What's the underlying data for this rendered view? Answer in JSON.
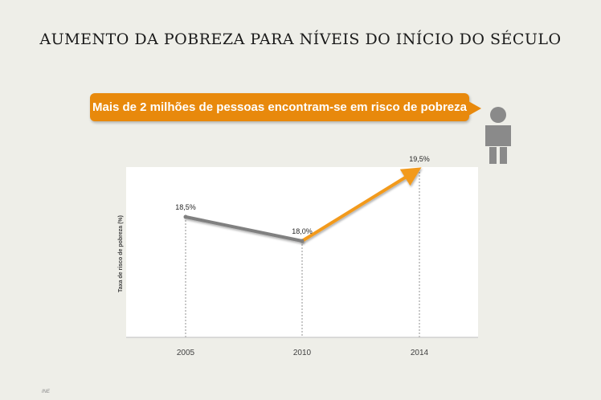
{
  "title": "AUMENTO DA POBREZA PARA NÍVEIS DO INÍCIO DO SÉCULO",
  "callout": "Mais de 2 milhões de pessoas encontram-se em risco de pobreza",
  "icon": "person-icon",
  "source": "INE",
  "colors": {
    "grey_line": "#808080",
    "orange_line": "#f29a1e",
    "callout": "#e8890c",
    "icon": "#8a8a8a"
  },
  "chart_data": {
    "type": "line",
    "categories": [
      "2005",
      "2010",
      "2014"
    ],
    "values": [
      18.5,
      18.0,
      19.5
    ],
    "data_labels": [
      "18,5%",
      "18,0%",
      "19,5%"
    ],
    "ylabel": "Taxa de risco de pobreza (%)",
    "ylim": [
      16.0,
      20.0
    ],
    "grid": false,
    "segment_colors": [
      "#808080",
      "#f29a1e"
    ]
  }
}
